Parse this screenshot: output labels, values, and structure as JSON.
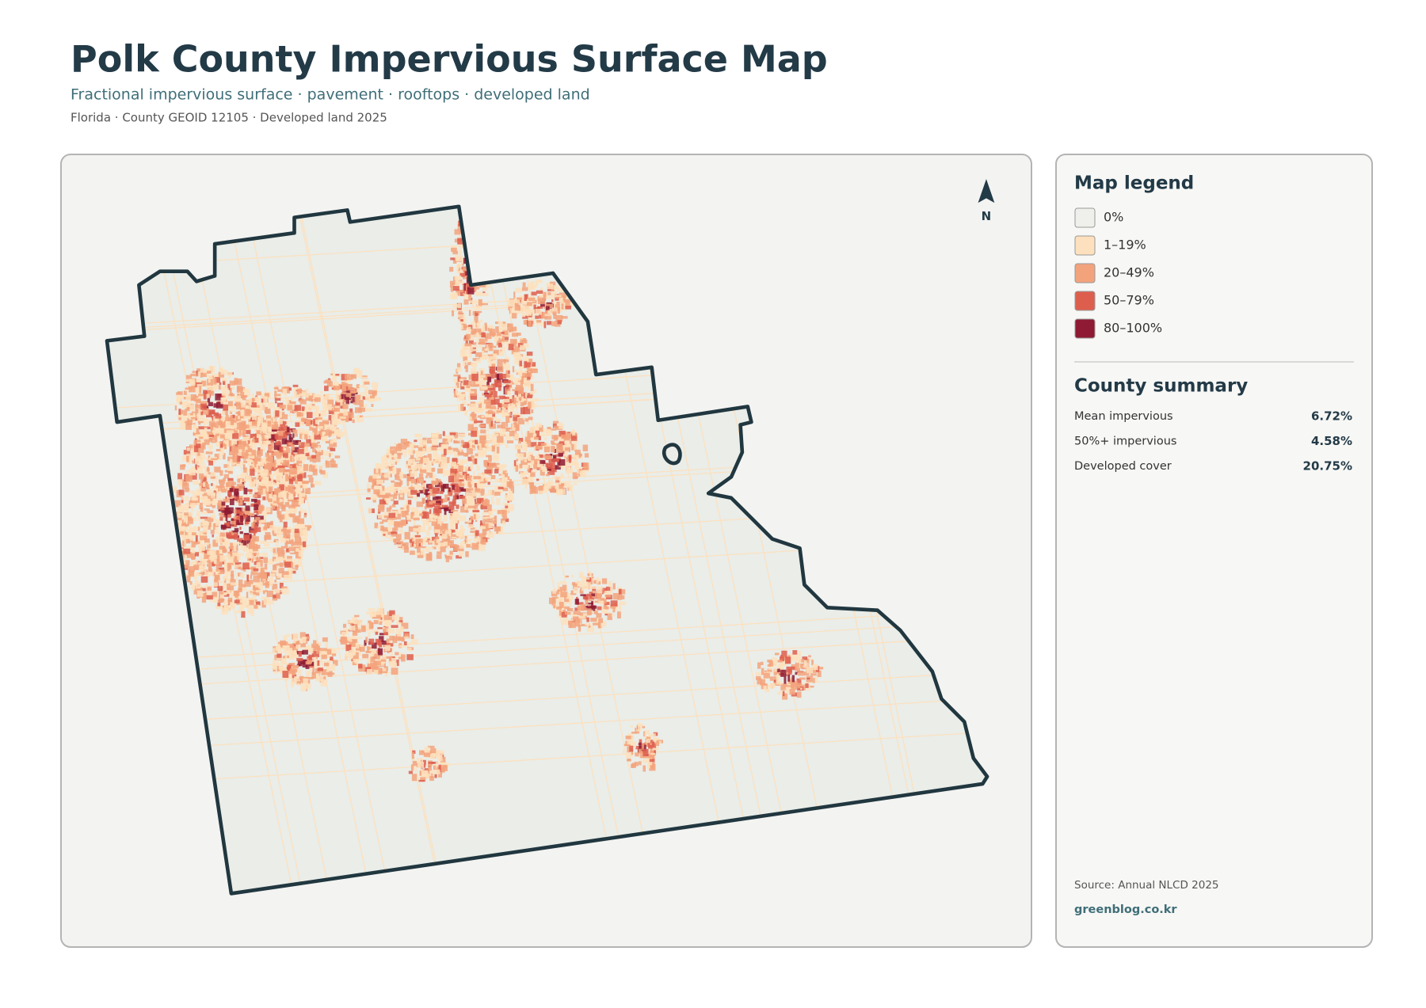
{
  "header": {
    "title": "Polk County Impervious Surface Map",
    "subtitle": "Fractional impervious surface · pavement · rooftops · developed land",
    "meta": "Florida · County GEOID 12105 · Developed land 2025"
  },
  "map": {
    "north_label": "N"
  },
  "legend": {
    "title": "Map legend",
    "items": [
      {
        "label": "0%",
        "color": "#efefeb"
      },
      {
        "label": "1–19%",
        "color": "#fde0bd"
      },
      {
        "label": "20–49%",
        "color": "#f3a37c"
      },
      {
        "label": "50–79%",
        "color": "#de5e4d"
      },
      {
        "label": "80–100%",
        "color": "#8e1b33"
      }
    ]
  },
  "summary": {
    "title": "County summary",
    "rows": [
      [
        "Mean impervious",
        "6.72%"
      ],
      [
        "50%+ impervious",
        "4.58%"
      ],
      [
        "Developed cover",
        "20.75%"
      ]
    ]
  },
  "footer": {
    "source": "Source: Annual NLCD 2025",
    "credit": "greenblog.co.kr"
  }
}
